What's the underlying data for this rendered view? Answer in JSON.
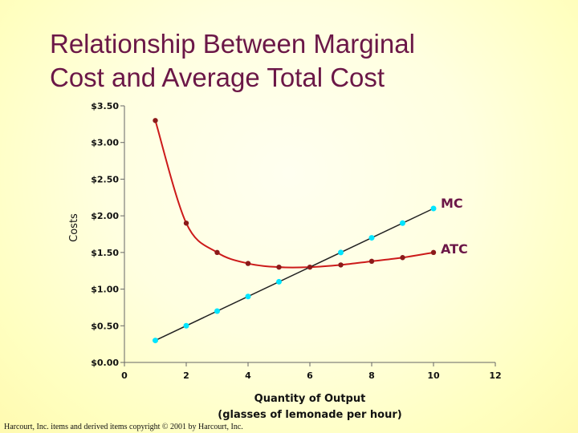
{
  "title": {
    "line1": "Relationship Between Marginal",
    "line2": "Cost and Average Total Cost"
  },
  "footer": "Harcourt, Inc. items and derived items copyright © 2001 by Harcourt, Inc.",
  "colors": {
    "title": "#6b1747",
    "atc_line": "#cc1a1a",
    "atc_marker": "#8b1a1a",
    "mc_line": "#222222",
    "mc_marker": "#00e5ff"
  },
  "chart_data": {
    "type": "line",
    "ylabel": "Costs",
    "xlabel": [
      "Quantity of Output",
      "(glasses of lemonade per hour)"
    ],
    "xlim": [
      0,
      12
    ],
    "ylim": [
      0,
      3.5
    ],
    "xticks": [
      0,
      2,
      4,
      6,
      8,
      10,
      12
    ],
    "yticks": [
      0,
      0.5,
      1,
      1.5,
      2,
      2.5,
      3,
      3.5
    ],
    "ytick_labels": [
      "$0.00",
      "$0.50",
      "$1.00",
      "$1.50",
      "$2.00",
      "$2.50",
      "$3.00",
      "$3.50"
    ],
    "grid": false,
    "series": [
      {
        "name": "MC",
        "x": [
          1,
          2,
          3,
          4,
          5,
          6,
          7,
          8,
          9,
          10
        ],
        "y": [
          0.3,
          0.5,
          0.7,
          0.9,
          1.1,
          1.3,
          1.5,
          1.7,
          1.9,
          2.1
        ]
      },
      {
        "name": "ATC",
        "x": [
          1,
          2,
          3,
          4,
          5,
          6,
          7,
          8,
          9,
          10
        ],
        "y": [
          3.3,
          1.9,
          1.5,
          1.35,
          1.3,
          1.3,
          1.33,
          1.38,
          1.43,
          1.5
        ]
      }
    ]
  }
}
